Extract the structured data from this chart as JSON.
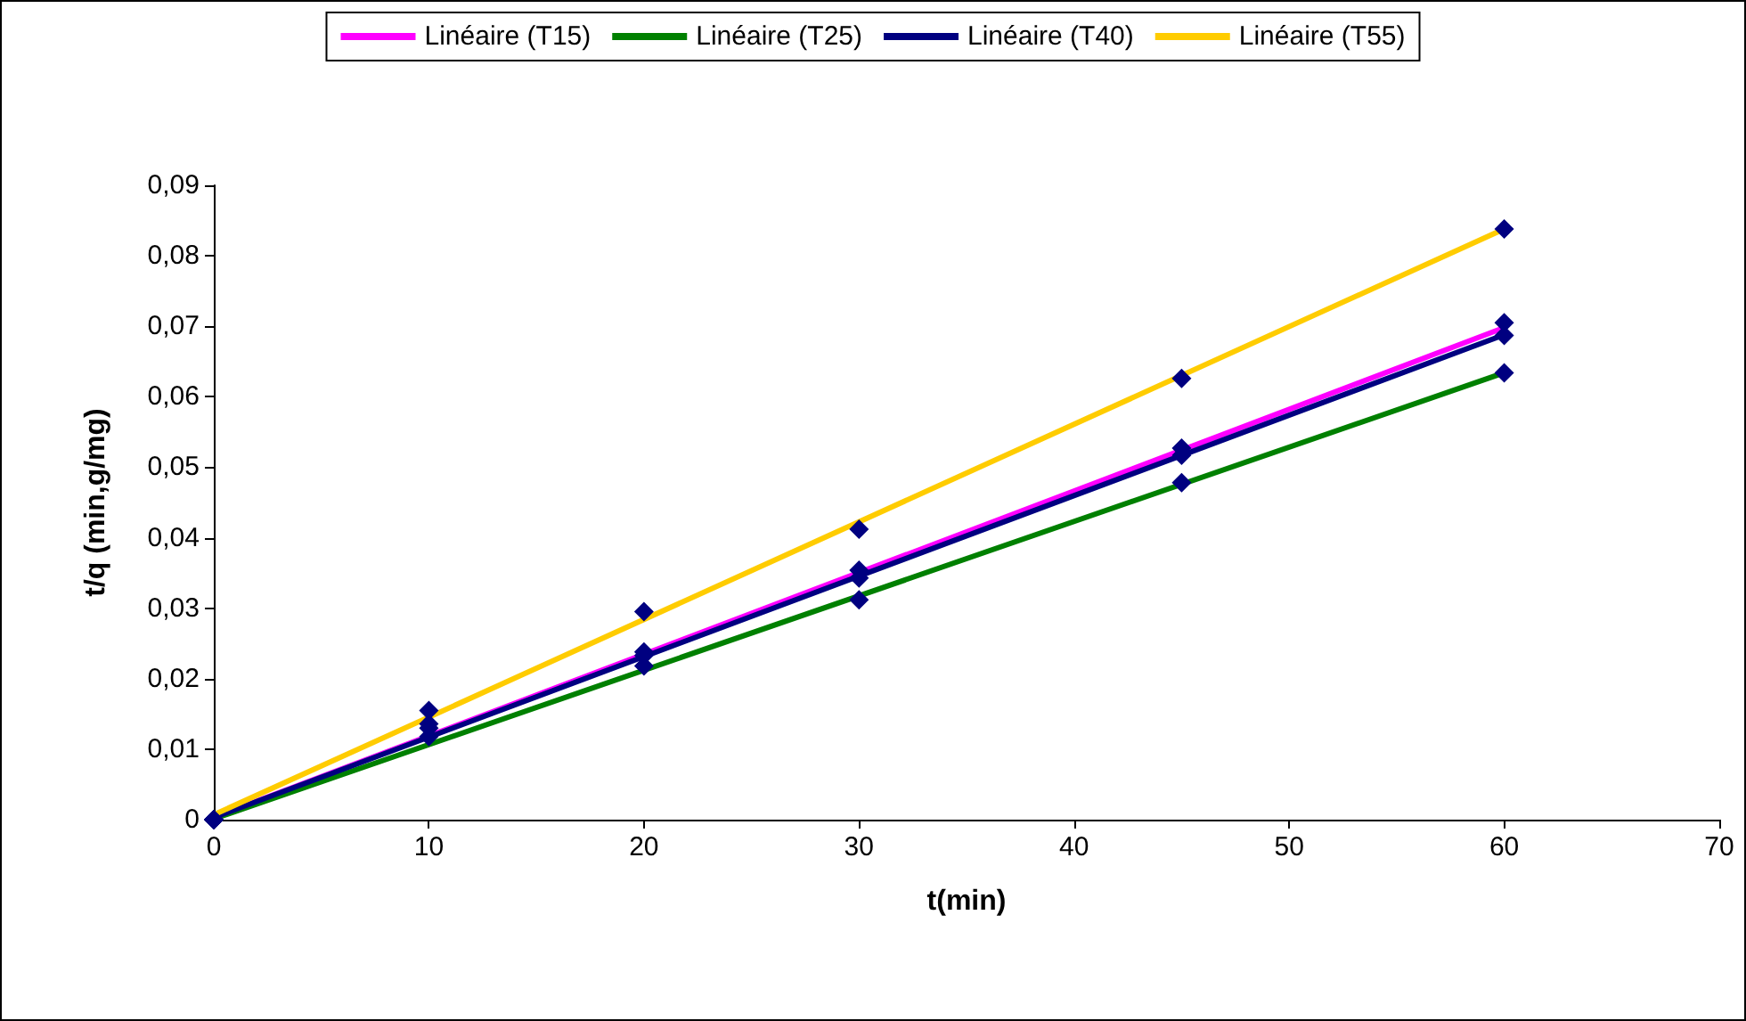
{
  "chart_data": {
    "type": "line",
    "xlabel": "t(min)",
    "ylabel": "t/q (min,g/mg)",
    "xlim": [
      0,
      70
    ],
    "xticks": [
      0,
      10,
      20,
      30,
      40,
      50,
      60,
      70
    ],
    "ylim": [
      0,
      0.09
    ],
    "yticks": [
      {
        "value": 0,
        "label": "0"
      },
      {
        "value": 0.01,
        "label": "0,01"
      },
      {
        "value": 0.02,
        "label": "0,02"
      },
      {
        "value": 0.03,
        "label": "0,03"
      },
      {
        "value": 0.04,
        "label": "0,04"
      },
      {
        "value": 0.05,
        "label": "0,05"
      },
      {
        "value": 0.06,
        "label": "0,06"
      },
      {
        "value": 0.07,
        "label": "0,07"
      },
      {
        "value": 0.08,
        "label": "0,08"
      },
      {
        "value": 0.09,
        "label": "0,09"
      }
    ],
    "grid": false,
    "legend": "top",
    "series": [
      {
        "name": "Linéaire (T15)",
        "marker": "none",
        "color": "#ff00ff",
        "x": [
          0,
          60
        ],
        "values": [
          0.0003,
          0.0698
        ]
      },
      {
        "name": "Linéaire (T25)",
        "marker": "none",
        "color": "#008000",
        "x": [
          0,
          60
        ],
        "values": [
          0.0001,
          0.0634
        ]
      },
      {
        "name": "Linéaire (T40)",
        "marker": "none",
        "color": "#000080",
        "x": [
          0,
          60
        ],
        "values": [
          0.0003,
          0.0688
        ]
      },
      {
        "name": "Linéaire (T55)",
        "marker": "none",
        "color": "#ffcc00",
        "x": [
          0,
          60
        ],
        "values": [
          0.0007,
          0.0838
        ]
      },
      {
        "type": "scatter",
        "marker": "diamond",
        "color": "#000080",
        "x": [
          0,
          10,
          20,
          30,
          45,
          60
        ],
        "values": [
          0,
          0.0136,
          0.0238,
          0.0354,
          0.0527,
          0.0705
        ]
      },
      {
        "type": "scatter",
        "marker": "diamond",
        "color": "#000080",
        "x": [
          0,
          10,
          20,
          30,
          45,
          60
        ],
        "values": [
          0,
          0.0118,
          0.0218,
          0.0312,
          0.0478,
          0.0634
        ]
      },
      {
        "type": "scatter",
        "marker": "diamond",
        "color": "#000080",
        "x": [
          0,
          10,
          20,
          30,
          45,
          60
        ],
        "values": [
          0,
          0.013,
          0.0233,
          0.0343,
          0.0517,
          0.0687
        ]
      },
      {
        "type": "scatter",
        "marker": "diamond",
        "color": "#000080",
        "x": [
          0,
          10,
          20,
          30,
          45,
          60
        ],
        "values": [
          0,
          0.0155,
          0.0295,
          0.0412,
          0.0626,
          0.0838
        ]
      }
    ]
  }
}
